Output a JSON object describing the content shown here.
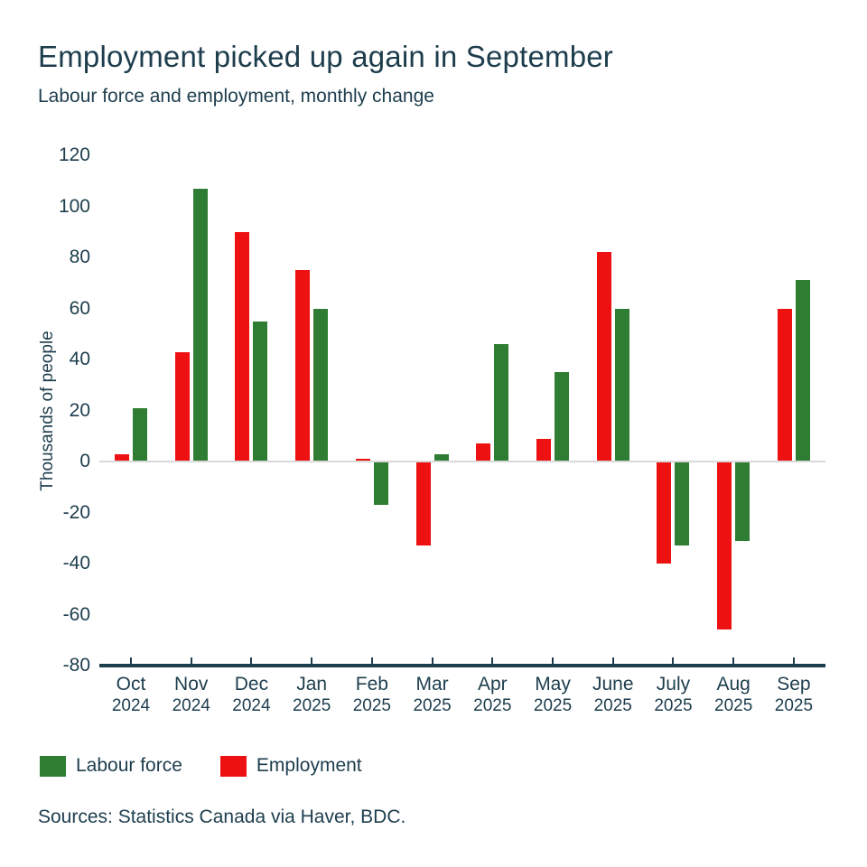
{
  "chart_data": {
    "type": "bar",
    "title": "Employment picked up again in September",
    "subtitle": "Labour force and employment, monthly change",
    "ylabel": "Thousands of people",
    "ylim": [
      -80,
      120
    ],
    "yticks": [
      120,
      100,
      80,
      60,
      40,
      20,
      0,
      -20,
      -40,
      -60,
      -80
    ],
    "grid": "zero-line-only",
    "legend_position": "bottom-left",
    "axis_color": "#1d3d4d",
    "zero_line_color": "#d9d9d9",
    "categories": [
      {
        "month": "Oct",
        "year": "2024"
      },
      {
        "month": "Nov",
        "year": "2024"
      },
      {
        "month": "Dec",
        "year": "2024"
      },
      {
        "month": "Jan",
        "year": "2025"
      },
      {
        "month": "Feb",
        "year": "2025"
      },
      {
        "month": "Mar",
        "year": "2025"
      },
      {
        "month": "Apr",
        "year": "2025"
      },
      {
        "month": "May",
        "year": "2025"
      },
      {
        "month": "June",
        "year": "2025"
      },
      {
        "month": "July",
        "year": "2025"
      },
      {
        "month": "Aug",
        "year": "2025"
      },
      {
        "month": "Sep",
        "year": "2025"
      }
    ],
    "series": [
      {
        "name": "Employment",
        "color": "#ee1111",
        "values": [
          3,
          43,
          90,
          75,
          1,
          -33,
          7,
          9,
          82,
          -40,
          -66,
          60
        ]
      },
      {
        "name": "Labour force",
        "color": "#2e7d32",
        "values": [
          21,
          107,
          55,
          60,
          -17,
          3,
          46,
          35,
          60,
          -33,
          -31,
          71
        ]
      }
    ],
    "series_draw_order_note": "Employment (red) bar drawn on the left of each pair, Labour force (green) on the right"
  },
  "legend": {
    "items": [
      {
        "label": "Labour force",
        "color": "#2e7d32"
      },
      {
        "label": "Employment",
        "color": "#ee1111"
      }
    ]
  },
  "footer": {
    "sources": "Sources: Statistics Canada via Haver, BDC."
  }
}
